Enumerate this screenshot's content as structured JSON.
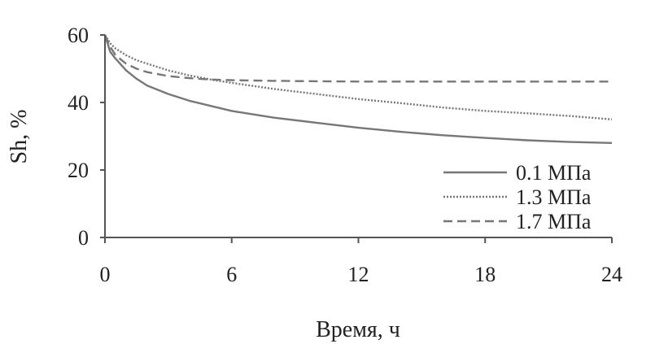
{
  "chart_data": {
    "type": "line",
    "xlabel": "Время, ч",
    "ylabel": "Sh, %",
    "xlim": [
      0,
      24
    ],
    "ylim": [
      0,
      60
    ],
    "xticks": [
      "0",
      "6",
      "12",
      "18",
      "24"
    ],
    "yticks": [
      "0",
      "20",
      "40",
      "60"
    ],
    "grid": false,
    "legend_position": "bottom-right",
    "series": [
      {
        "name": "0.1 МПа",
        "color": "#777777",
        "dash": "solid",
        "x": [
          0,
          0.25,
          0.5,
          1,
          1.5,
          2,
          3,
          4,
          5,
          6,
          8,
          10,
          12,
          14,
          16,
          18,
          20,
          22,
          24
        ],
        "y": [
          60,
          55,
          53,
          49.5,
          47,
          45,
          42.5,
          40.5,
          39,
          37.5,
          35.5,
          34,
          32.5,
          31.3,
          30.3,
          29.5,
          28.8,
          28.3,
          28
        ]
      },
      {
        "name": "1.3 МПа",
        "color": "#777777",
        "dash": "dotted",
        "x": [
          0,
          0.25,
          0.5,
          1,
          1.5,
          2,
          3,
          4,
          5,
          6,
          8,
          10,
          12,
          14,
          16,
          18,
          20,
          22,
          24
        ],
        "y": [
          60,
          57.5,
          56,
          54,
          52.5,
          51.5,
          49.5,
          48,
          46.8,
          45.8,
          44,
          42.5,
          41,
          39.8,
          38.5,
          37.5,
          36.8,
          36,
          35
        ]
      },
      {
        "name": "1.7 МПа",
        "color": "#777777",
        "dash": "dashed",
        "x": [
          0,
          0.25,
          0.5,
          1,
          1.5,
          2,
          3,
          4,
          5,
          6,
          8,
          10,
          12,
          14,
          16,
          18,
          20,
          22,
          24
        ],
        "y": [
          60,
          56.5,
          54,
          51.5,
          50,
          49,
          47.8,
          47.2,
          46.8,
          46.6,
          46.4,
          46.3,
          46.2,
          46.2,
          46.2,
          46.2,
          46.2,
          46.2,
          46.2
        ]
      }
    ]
  }
}
